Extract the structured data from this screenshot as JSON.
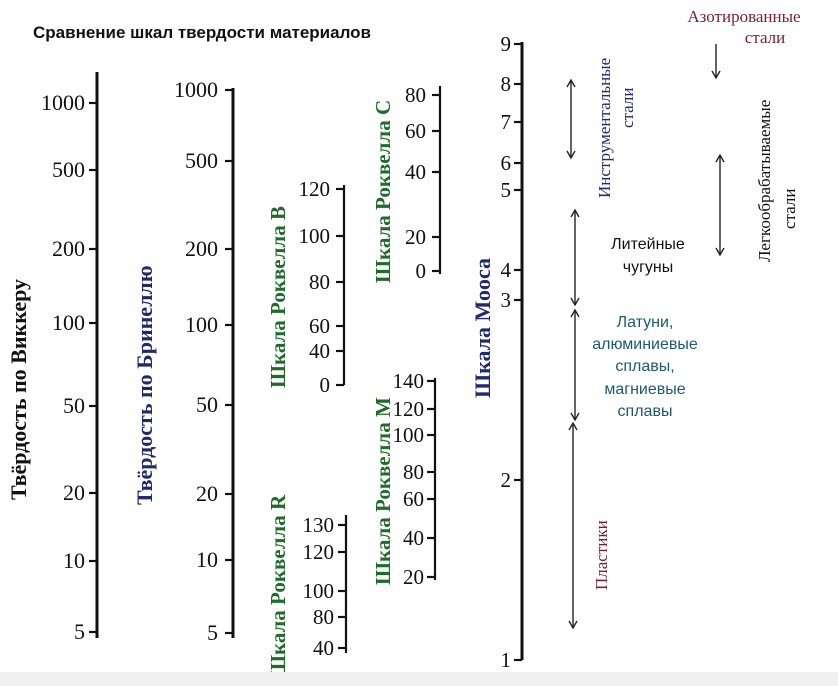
{
  "title": "Сравнение шкал твердости материалов",
  "colors": {
    "black": "#111111",
    "navy": "#1f2a6b",
    "green": "#1f6b2a",
    "maroon": "#7a1e36",
    "teal": "#1c5a70"
  },
  "scales": {
    "vickers": {
      "name": "Твёрдость по Виккеру",
      "ticks": [
        "1000",
        "500",
        "200",
        "100",
        "50",
        "20",
        "10",
        "5"
      ]
    },
    "brinell": {
      "name": "Твёрдость по Бринеллю",
      "ticks": [
        "1000",
        "500",
        "200",
        "100",
        "50",
        "20",
        "10",
        "5"
      ]
    },
    "rockwell_b": {
      "name": "Шкала Роквелла B",
      "ticks": [
        "120",
        "100",
        "80",
        "60",
        "40",
        "0"
      ]
    },
    "rockwell_c": {
      "name": "Шкала Роквелла C",
      "ticks": [
        "80",
        "60",
        "40",
        "20",
        "0"
      ]
    },
    "rockwell_m": {
      "name": "Шкала Роквелла M",
      "ticks": [
        "140",
        "120",
        "100",
        "80",
        "60",
        "40",
        "20"
      ]
    },
    "rockwell_r": {
      "name": "Шкала Роквелла R",
      "ticks": [
        "130",
        "120",
        "100",
        "80",
        "40"
      ]
    },
    "mohs": {
      "name": "Шкала Мооса",
      "ticks": [
        "9",
        "8",
        "7",
        "6",
        "5",
        "4",
        "3",
        "2",
        "1"
      ]
    }
  },
  "materials": {
    "tool_steels": [
      "Инструментальные",
      "стали"
    ],
    "cast_irons": [
      "Литейные",
      "чугуны"
    ],
    "alloys": [
      "Латуни,",
      "алюминиевые",
      "сплавы,",
      "магниевые",
      "сплавы"
    ],
    "plastics": "Пластики",
    "nitrided_steels": [
      "Азотированные",
      "стали"
    ],
    "machinable_steels": [
      "Легкообрабатываемые",
      "стали"
    ]
  }
}
